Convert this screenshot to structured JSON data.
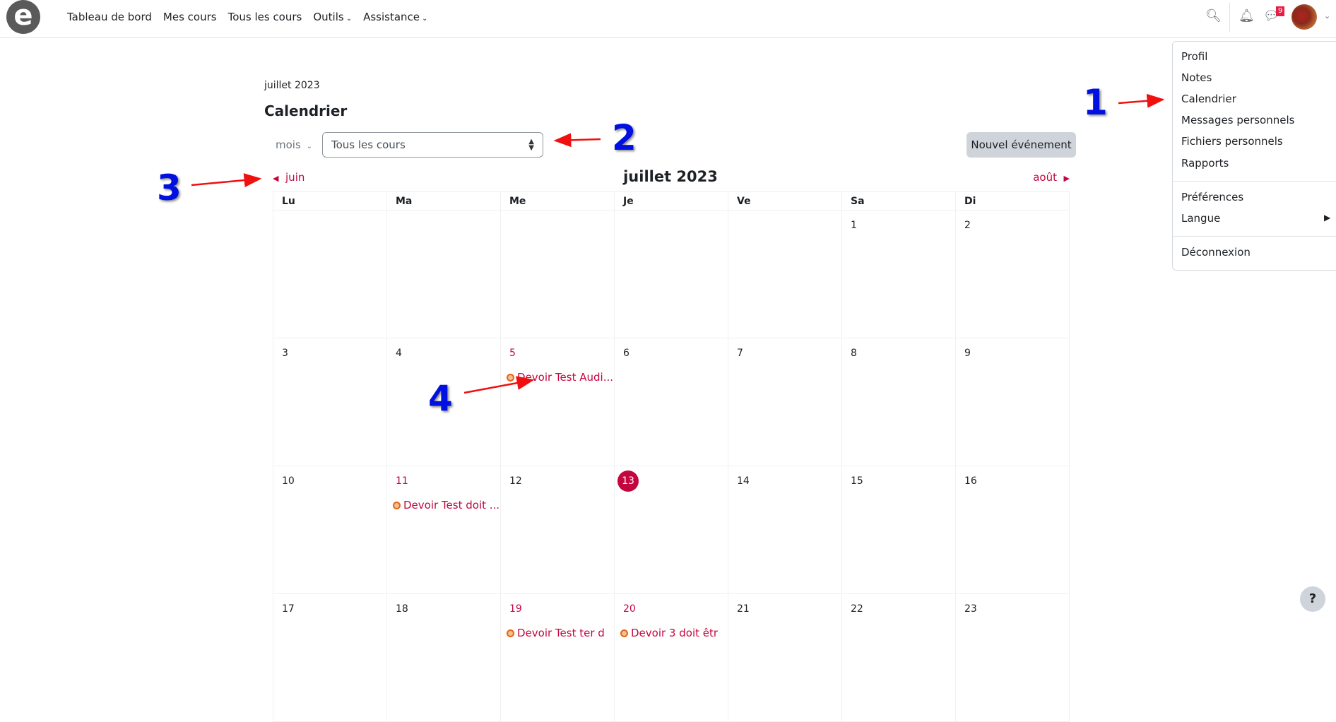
{
  "nav": {
    "logo": "e",
    "items": [
      {
        "label": "Tableau de bord"
      },
      {
        "label": "Mes cours"
      },
      {
        "label": "Tous les cours"
      },
      {
        "label": "Outils",
        "dropdown": true
      },
      {
        "label": "Assistance",
        "dropdown": true
      }
    ],
    "message_count": "9"
  },
  "user_menu": {
    "items": [
      "Profil",
      "Notes",
      "Calendrier",
      "Messages personnels",
      "Fichiers personnels",
      "Rapports",
      "Préférences",
      "Langue",
      "Déconnexion"
    ]
  },
  "breadcrumb": "juillet 2023",
  "page_title": "Calendrier",
  "controls": {
    "view": "mois",
    "course_select": "Tous les cours",
    "new_event": "Nouvel événement"
  },
  "calendar": {
    "title": "juillet 2023",
    "prev": "juin",
    "next": "août",
    "weekdays": [
      "Lu",
      "Ma",
      "Me",
      "Je",
      "Ve",
      "Sa",
      "Di"
    ],
    "weeks": [
      [
        "",
        "",
        "",
        "",
        "",
        "1",
        "2"
      ],
      [
        "3",
        "4",
        "5",
        "6",
        "7",
        "8",
        "9"
      ],
      [
        "10",
        "11",
        "12",
        "13",
        "14",
        "15",
        "16"
      ],
      [
        "17",
        "18",
        "19",
        "20",
        "21",
        "22",
        "23"
      ]
    ],
    "today": "13",
    "events": {
      "5": "Devoir Test Audi...",
      "11": "Devoir Test doit ...",
      "19": "Devoir Test ter d",
      "20": "Devoir 3 doit êtr"
    },
    "accent": "#c4063f"
  },
  "annotations": [
    "1",
    "2",
    "3",
    "4"
  ],
  "help": "?"
}
